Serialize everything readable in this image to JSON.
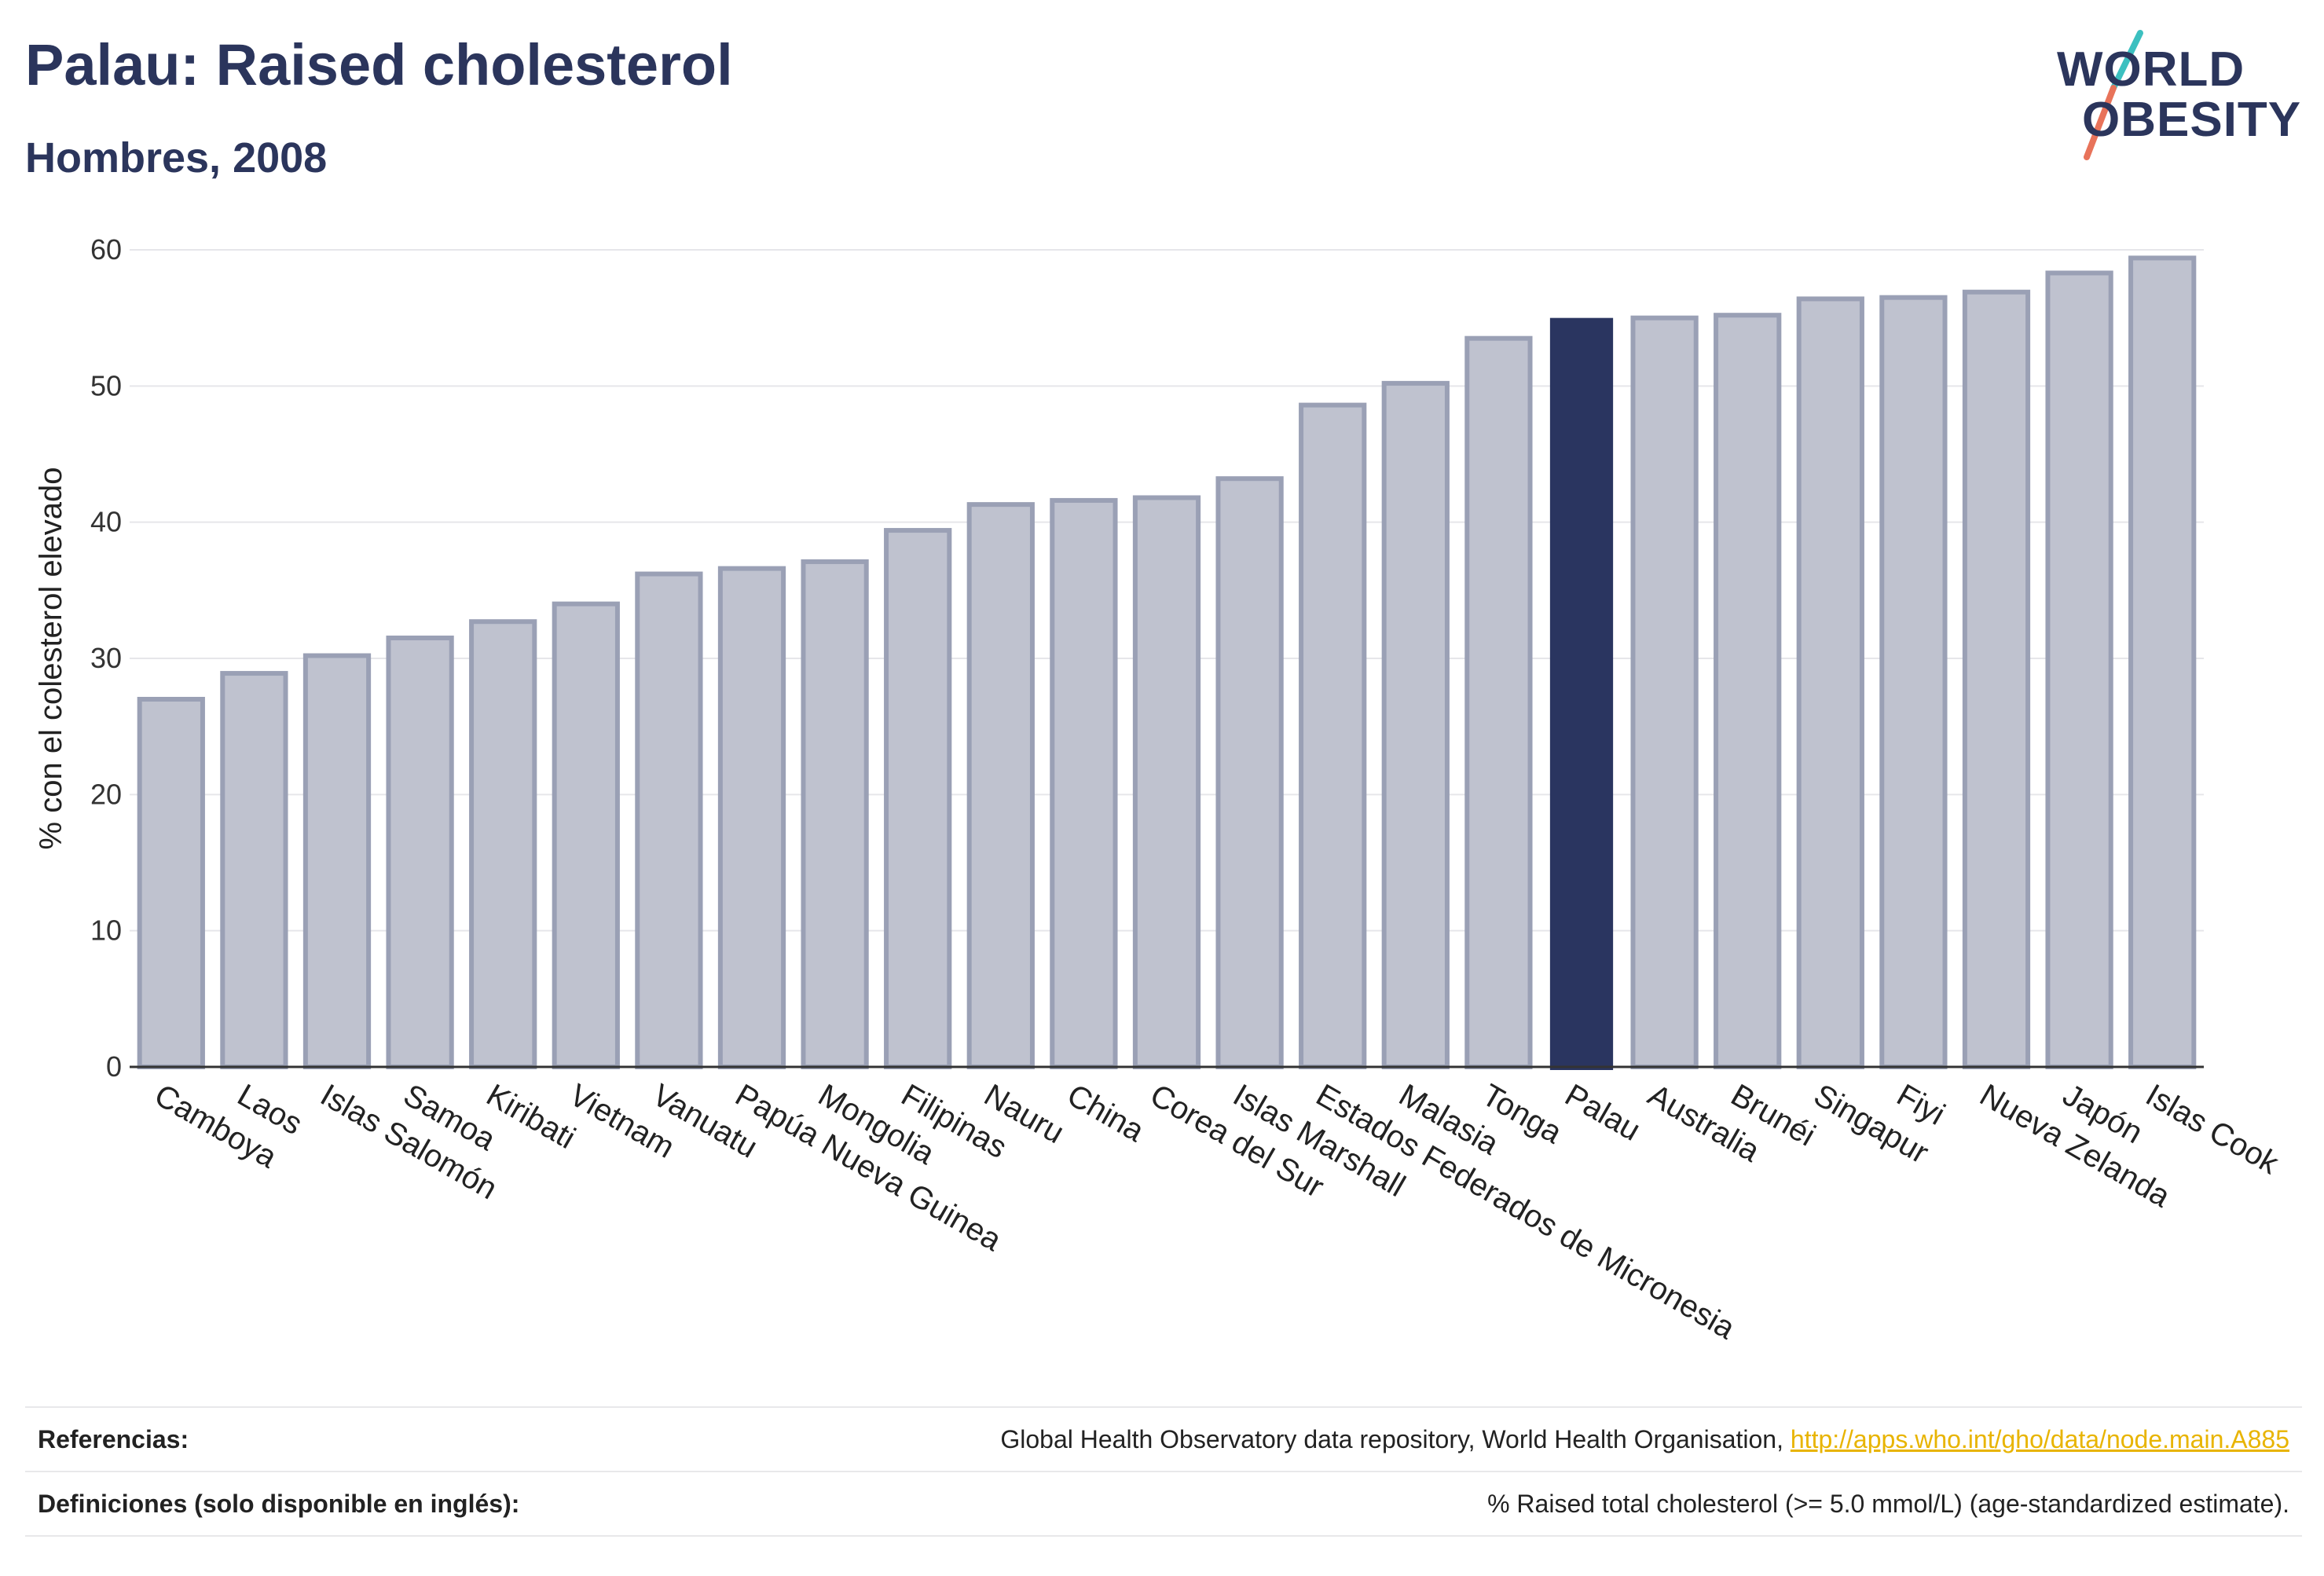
{
  "header": {
    "title": "Palau: Raised cholesterol",
    "subtitle": "Hombres, 2008"
  },
  "logo": {
    "line1": "WORLD",
    "line2": "OBESITY"
  },
  "footer": {
    "references_label": "Referencias:",
    "references_text": "Global Health Observatory data repository, World Health Organisation, ",
    "references_link": "http://apps.who.int/gho/data/node.main.A885",
    "definitions_label": "Definiciones (solo disponible en inglés):",
    "definitions_text": "% Raised total cholesterol (>= 5.0 mmol/L) (age-standardized estimate)."
  },
  "colors": {
    "bar": "#bfc2cf",
    "bar_stroke": "#9aa0b5",
    "highlight": "#2a3560",
    "grid": "#e6e6ea",
    "axis": "#333333",
    "title": "#2b355c",
    "logo_teal": "#3cc0c0",
    "logo_coral": "#e8735a"
  },
  "chart_data": {
    "type": "bar",
    "ylabel": "% con el colesterol elevado",
    "xlabel": "",
    "ylim": [
      0,
      60
    ],
    "yticks": [
      0,
      10,
      20,
      30,
      40,
      50,
      60
    ],
    "grid": true,
    "highlight": "Palau",
    "categories": [
      "Camboya",
      "Laos",
      "Islas Salomón",
      "Samoa",
      "Kiribati",
      "Vietnam",
      "Vanuatu",
      "Papúa Nueva Guinea",
      "Mongolia",
      "Filipinas",
      "Nauru",
      "China",
      "Corea del Sur",
      "Islas Marshall",
      "Estados Federados de Micronesia",
      "Malasia",
      "Tonga",
      "Palau",
      "Australia",
      "Brunéi",
      "Singapur",
      "Fiyi",
      "Nueva Zelanda",
      "Japón",
      "Islas Cook"
    ],
    "values": [
      27.0,
      28.9,
      30.2,
      31.5,
      32.7,
      34.0,
      36.2,
      36.6,
      37.1,
      39.4,
      41.3,
      41.6,
      41.8,
      43.2,
      48.6,
      50.2,
      53.5,
      55.0,
      55.0,
      55.2,
      56.4,
      56.5,
      56.9,
      58.3,
      59.4
    ]
  }
}
